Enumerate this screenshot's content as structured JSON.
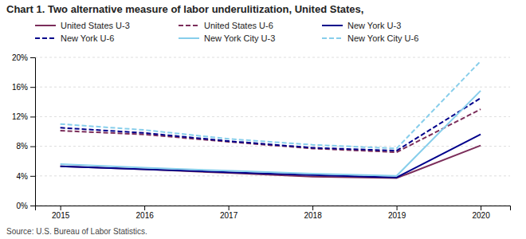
{
  "chart_data": {
    "type": "line",
    "title": "Chart 1. Two alternative measure of labor underulitization, United States,",
    "annotations": [
      "Source: U.S. Bureau of Labor Statistics."
    ],
    "x": [
      2015,
      2016,
      2017,
      2018,
      2019,
      2020
    ],
    "xlim": [
      2014.7,
      2020.35
    ],
    "xticks": [
      2015,
      2016,
      2017,
      2018,
      2019,
      2020
    ],
    "ylim": [
      0,
      20
    ],
    "yticks": [
      {
        "value": 0,
        "label": "0%"
      },
      {
        "value": 4,
        "label": "4%"
      },
      {
        "value": 8,
        "label": "8%"
      },
      {
        "value": 12,
        "label": "12%"
      },
      {
        "value": 16,
        "label": "16%"
      },
      {
        "value": 20,
        "label": "20%"
      }
    ],
    "grid": true,
    "legend": "top-left",
    "series": [
      {
        "name": "United States U-3",
        "color": "#7B2D5A",
        "line_style": "solid",
        "values": [
          5.3,
          4.9,
          4.4,
          3.9,
          3.7,
          8.1
        ]
      },
      {
        "name": "United States U-6",
        "color": "#7B2D5A",
        "line_style": "dashed",
        "values": [
          10.1,
          9.6,
          8.6,
          7.7,
          7.2,
          13.0
        ]
      },
      {
        "name": "New York U-3",
        "color": "#00008B",
        "line_style": "solid",
        "values": [
          5.3,
          4.9,
          4.5,
          4.1,
          3.8,
          9.6
        ]
      },
      {
        "name": "New York U-6",
        "color": "#00008B",
        "line_style": "dashed",
        "values": [
          10.5,
          9.8,
          8.7,
          7.8,
          7.4,
          14.5
        ]
      },
      {
        "name": "New York City U-3",
        "color": "#87CEEB",
        "line_style": "solid",
        "values": [
          5.6,
          5.1,
          4.7,
          4.3,
          4.0,
          15.5
        ]
      },
      {
        "name": "New York City U-6",
        "color": "#87CEEB",
        "line_style": "dashed",
        "values": [
          11.0,
          10.2,
          9.0,
          8.2,
          7.7,
          19.5
        ]
      }
    ]
  }
}
